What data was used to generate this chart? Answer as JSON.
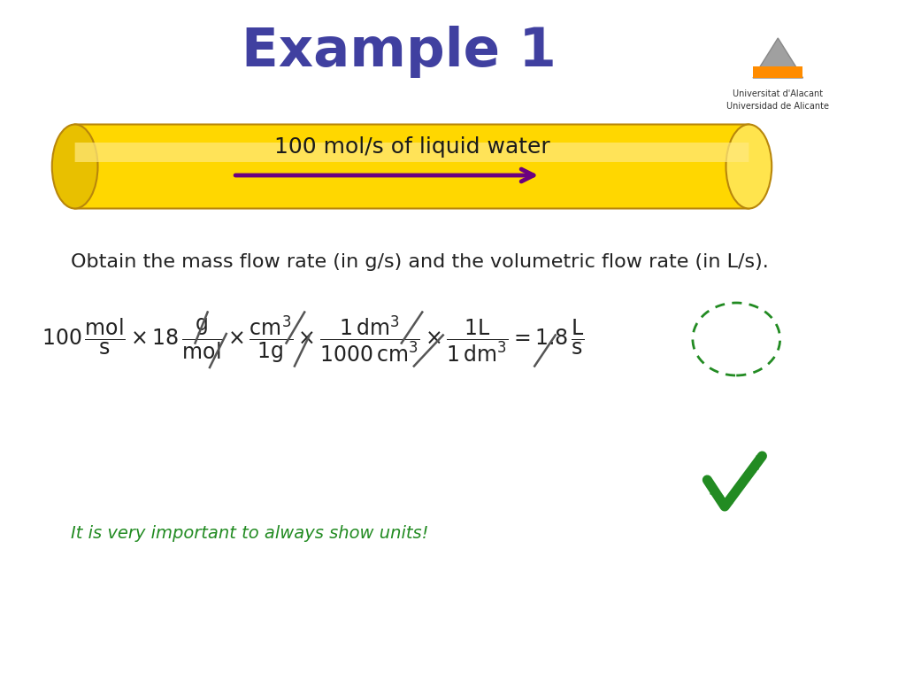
{
  "title": "Example 1",
  "title_color": "#4040a0",
  "title_fontsize": 44,
  "bg_color": "#ffffff",
  "pipe_color": "#FFD700",
  "pipe_shadow_color": "#B8860B",
  "pipe_text": "100 mol/s of liquid water",
  "pipe_text_color": "#1a1a1a",
  "arrow_color": "#6B0080",
  "description": "Obtain the mass flow rate (in g/s) and the volumetric flow rate (in L/s).",
  "equation": "100 \\frac{\\mathrm{mol}}{\\mathrm{s}} \\times 18 \\frac{\\mathrm{g}}{\\mathrm{mol}} \\times \\frac{\\mathrm{cm}^3}{\\mathrm{1g}} \\times \\frac{\\mathrm{1\\,dm}^3}{\\mathrm{1000\\,cm}^3} \\times \\frac{\\mathrm{1L}}{\\mathrm{1\\,dm}^3} = 1.8 \\frac{\\mathrm{L}}{\\mathrm{s}}",
  "note": "It is very important to always show units!",
  "note_color": "#228B22",
  "circle_color": "#228B22",
  "checkmark_color": "#228B22",
  "univ_name1": "Universitat d'Alacant",
  "univ_name2": "Universidad de Alicante"
}
